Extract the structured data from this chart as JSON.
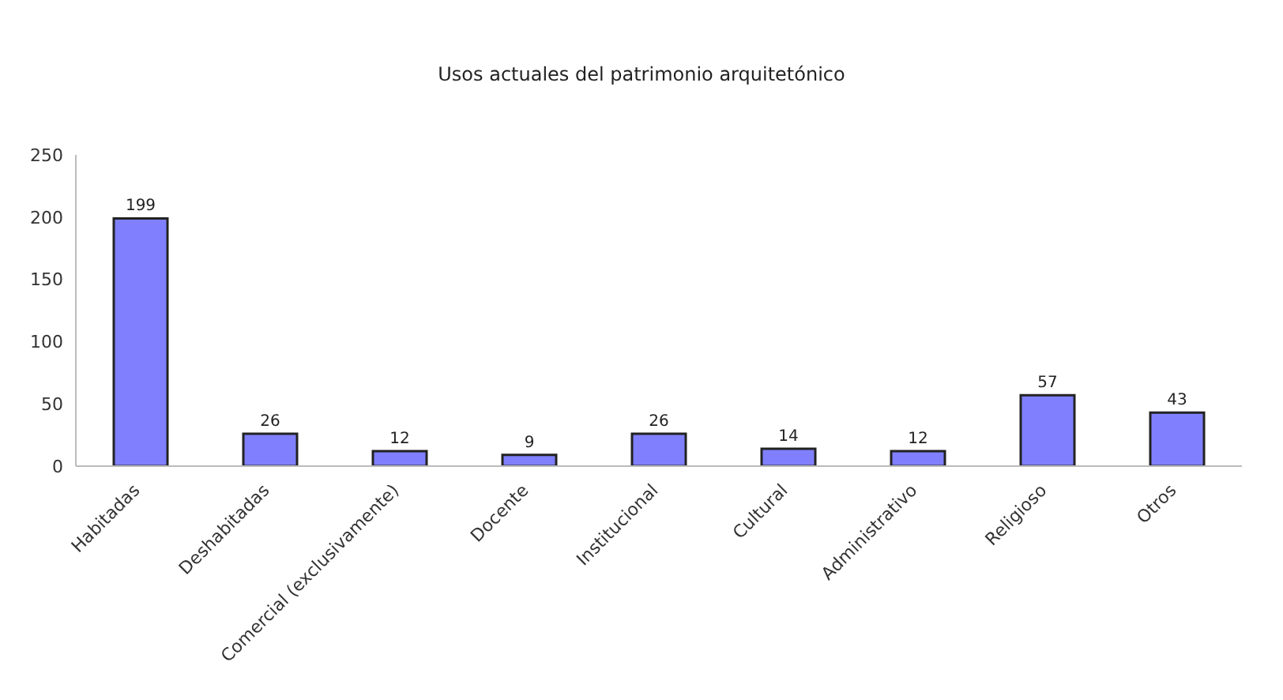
{
  "chart_data": {
    "type": "bar",
    "title": "Usos actuales del patrimonio arquitetónico",
    "categories": [
      "Habitadas",
      "Deshabitadas",
      "Comercial (exclusivamente)",
      "Docente",
      "Institucional",
      "Cultural",
      "Administrativo",
      "Religioso",
      "Otros"
    ],
    "values": [
      199,
      26,
      12,
      9,
      26,
      14,
      12,
      57,
      43
    ],
    "color": "#8080ff",
    "ylim": [
      0,
      250
    ],
    "yticks": [
      0,
      50,
      100,
      150,
      200,
      250
    ],
    "data_labels": true
  }
}
